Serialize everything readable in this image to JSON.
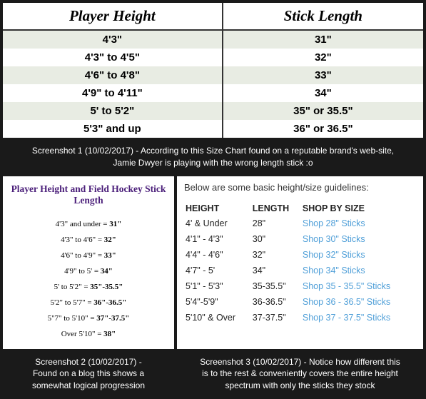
{
  "table1": {
    "headers": [
      "Player Height",
      "Stick Length"
    ],
    "rows": [
      [
        "4'3\"",
        "31\""
      ],
      [
        "4'3\" to 4'5\"",
        "32\""
      ],
      [
        "4'6\" to 4'8\"",
        "33\""
      ],
      [
        "4'9\" to 4'11\"",
        "34\""
      ],
      [
        "5' to 5'2\"",
        "35\" or 35.5\""
      ],
      [
        "5'3\" and up",
        "36\" or 36.5\""
      ]
    ]
  },
  "caption1": "Screenshot 1 (10/02/2017) - According to this Size Chart found on a reputable brand's web-site, Jamie Dwyer is playing with the wrong length stick :o",
  "table2": {
    "title": "Player Height and Field Hockey Stick Length",
    "rows": [
      {
        "h": "4'3\" and under =",
        "s": "31\""
      },
      {
        "h": "4'3\" to 4'6\" =",
        "s": "32\""
      },
      {
        "h": "4'6\" to 4'9\" =",
        "s": "33\""
      },
      {
        "h": "4'9\" to 5' =",
        "s": "34\""
      },
      {
        "h": "5' to 5'2\" =",
        "s": "35\"-35.5\""
      },
      {
        "h": "5'2\" to 5'7\" =",
        "s": "36\"-36.5\""
      },
      {
        "h": "5\"7\" to 5'10\" =",
        "s": "37\"-37.5\""
      },
      {
        "h": "Over 5'10\" =",
        "s": "38\""
      }
    ]
  },
  "caption2": "Screenshot 2 (10/02/2017) - Found on a blog this shows a somewhat logical progression",
  "table3": {
    "title": "Below are some basic height/size guidelines:",
    "headers": [
      "HEIGHT",
      "LENGTH",
      "SHOP BY SIZE"
    ],
    "rows": [
      {
        "h": "4' & Under",
        "l": "28\"",
        "s": "Shop 28\" Sticks"
      },
      {
        "h": "4'1\" - 4'3\"",
        "l": "30\"",
        "s": "Shop 30\" Sticks"
      },
      {
        "h": "4'4\" - 4'6\"",
        "l": "32\"",
        "s": "Shop 32\" Sticks"
      },
      {
        "h": "4'7\" - 5'",
        "l": "34\"",
        "s": "Shop 34\" Sticks"
      },
      {
        "h": "5'1\" - 5'3\"",
        "l": "35-35.5\"",
        "s": "Shop 35 -   35.5\" Sticks"
      },
      {
        "h": "5'4\"-5'9\"",
        "l": "36-36.5\"",
        "s": "Shop 36  -  36.5\" Sticks"
      },
      {
        "h": "5'10\" & Over",
        "l": "37-37.5\"",
        "s": "Shop 37  -  37.5\" Sticks"
      }
    ]
  },
  "caption3": "Screenshot 3 (10/02/2017) - Notice how different this is to the rest & conveniently covers the entire height spectrum with only the sticks they stock"
}
